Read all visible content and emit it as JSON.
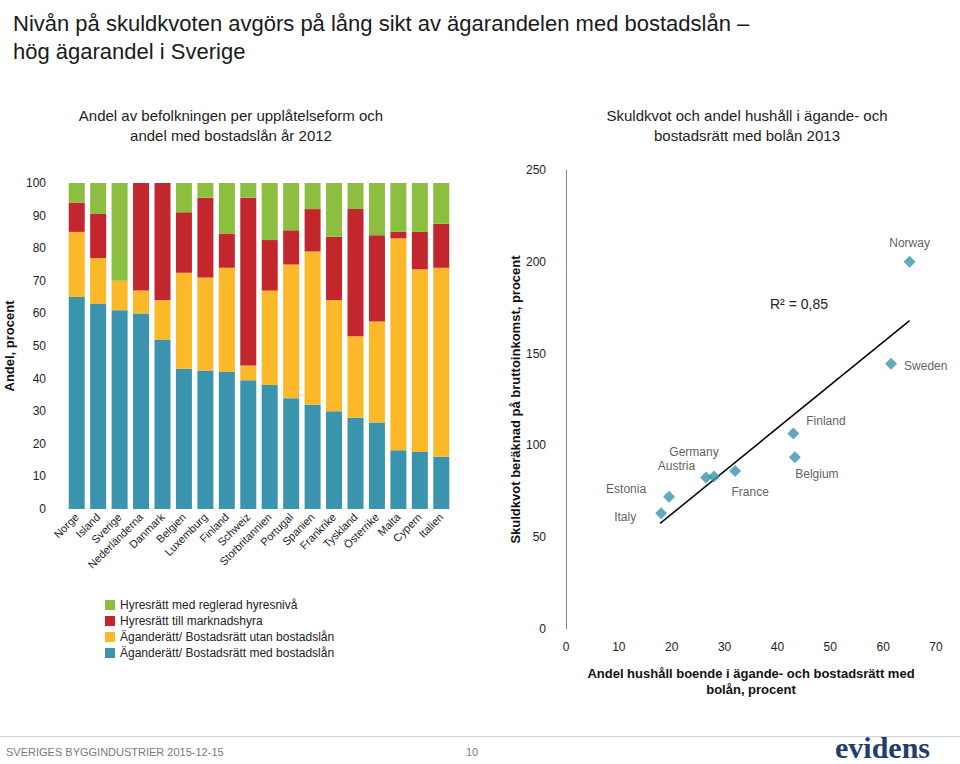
{
  "title": "Nivån på skuldkvoten avgörs på lång sikt av ägarandelen med bostadslån –\nhög ägarandel i Sverige",
  "footer": "SVERIGES BYGGINDUSTRIER 2015-12-15",
  "page_number": "10",
  "logo": "evidens",
  "chart_data": [
    {
      "type": "bar",
      "title": "Andel av befolkningen per upplåtelseform och\nandel med bostadslån år 2012",
      "ylabel": "Andel, procent",
      "stacked": true,
      "grid": false,
      "legend": "bottom left",
      "categories": [
        "Norge",
        "Island",
        "Sverige",
        "Nederländerna",
        "Danmark",
        "Belgien",
        "Luxemburg",
        "Finland",
        "Schweiz",
        "Storbritannien",
        "Portugal",
        "Spanien",
        "Frankrike",
        "Tyskland",
        "Österrike",
        "Malta",
        "Cypern",
        "Italien"
      ],
      "series": [
        {
          "name": "Äganderätt/ Bostadsrätt med bostadslån",
          "color": "#3b94ad",
          "values": [
            65,
            63,
            61,
            60,
            52,
            43,
            42.5,
            42,
            39.5,
            38,
            34,
            32,
            30,
            28,
            26.5,
            18,
            17.5,
            16
          ]
        },
        {
          "name": "Äganderätt/ Bostadsrätt utan bostadslån",
          "color": "#fbb829",
          "values": [
            20,
            14,
            9,
            7,
            12,
            29.5,
            28.5,
            32,
            4.5,
            29,
            41,
            47,
            34,
            25,
            31,
            65,
            56,
            58
          ]
        },
        {
          "name": "Hyresrätt till marknadshyra",
          "color": "#c1272d",
          "values": [
            9,
            13.5,
            0,
            33,
            36,
            18.5,
            24.5,
            10.5,
            51.5,
            15.5,
            10.5,
            13,
            19.5,
            39,
            26.5,
            2,
            11.5,
            13.5
          ]
        },
        {
          "name": "Hyresrätt med reglerad hyresnivå",
          "color": "#8cbf3f",
          "values": [
            6,
            9.5,
            30,
            0,
            0,
            9,
            4.5,
            15.5,
            4.5,
            17.5,
            14.5,
            8,
            16.5,
            8,
            16,
            15,
            15,
            12.5
          ]
        }
      ],
      "ylim": [
        0,
        100
      ],
      "yticks": [
        0,
        10,
        20,
        30,
        40,
        50,
        60,
        70,
        80,
        90,
        100
      ]
    },
    {
      "type": "scatter",
      "title": "Skuldkvot och andel hushåll i ägande- och\nbostadsrätt med bolån 2013",
      "xlabel": "Andel hushåll boende i ägande- och bostadsrätt med\nbolån, procent",
      "ylabel": "Skuldkvot beräknad på bruttoinkomst, procent",
      "grid": false,
      "color": "#3b94ad",
      "marker": "diamond",
      "labels": [
        "Italy",
        "Estonia",
        "Austria",
        "Germany",
        "France",
        "Belgium",
        "Finland",
        "Sweden",
        "Norway"
      ],
      "x": [
        18,
        19.5,
        26.5,
        28,
        32,
        43.3,
        43,
        61.5,
        65
      ],
      "values": [
        63,
        72,
        82.5,
        83,
        86,
        93.5,
        106.5,
        144.5,
        200
      ],
      "trendline": {
        "x": [
          17.8,
          65
        ],
        "values": [
          57.5,
          168
        ],
        "color": "#000000"
      },
      "annotations": [
        "R² = 0,85"
      ],
      "xlim": [
        0,
        70
      ],
      "xticks": [
        0,
        10,
        20,
        30,
        40,
        50,
        60,
        70
      ],
      "ylim": [
        0,
        250
      ],
      "yticks": [
        0,
        50,
        100,
        150,
        200,
        250
      ]
    }
  ]
}
